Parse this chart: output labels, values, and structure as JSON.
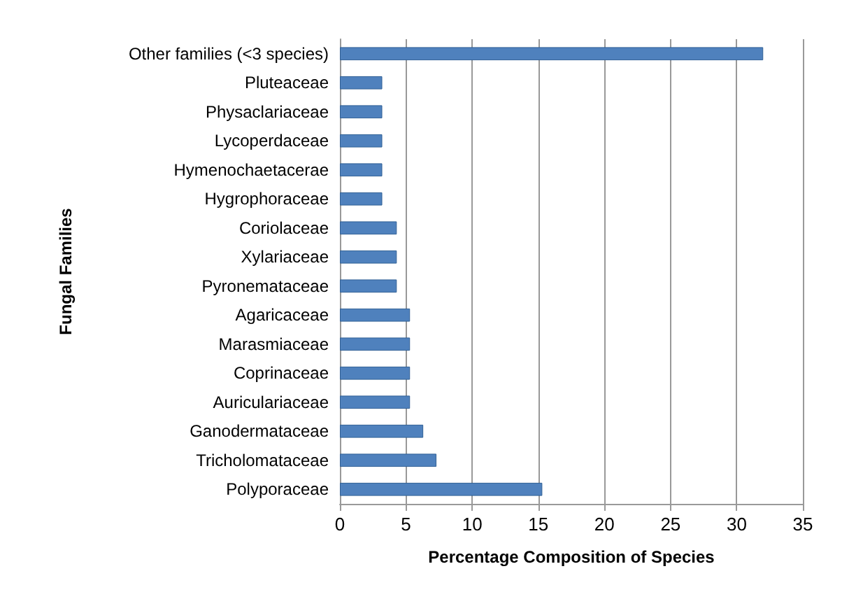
{
  "chart_data": {
    "type": "bar",
    "orientation": "horizontal",
    "xlabel": "Percentage Composition of Species",
    "ylabel": "Fungal Families",
    "categories": [
      "Other families (<3 species)",
      "Pluteaceae",
      "Physaclariaceae",
      "Lycoperdaceae",
      "Hymenochaetacerae",
      "Hygrophoraceae",
      "Coriolaceae",
      "Xylariaceae",
      "Pyronemataceae",
      "Agaricaceae",
      "Marasmiaceae",
      "Coprinaceae",
      "Auriculariaceae",
      "Ganodermataceae",
      "Tricholomataceae",
      "Polyporaceae"
    ],
    "values": [
      32.0,
      3.2,
      3.2,
      3.2,
      3.2,
      3.2,
      4.3,
      4.3,
      4.3,
      5.3,
      5.3,
      5.3,
      5.3,
      6.3,
      7.3,
      15.3
    ],
    "color": "#4f81bd",
    "xlim": [
      0,
      35
    ],
    "xticks": [
      0,
      5,
      10,
      15,
      20,
      25,
      30,
      35
    ],
    "grid": "x"
  }
}
